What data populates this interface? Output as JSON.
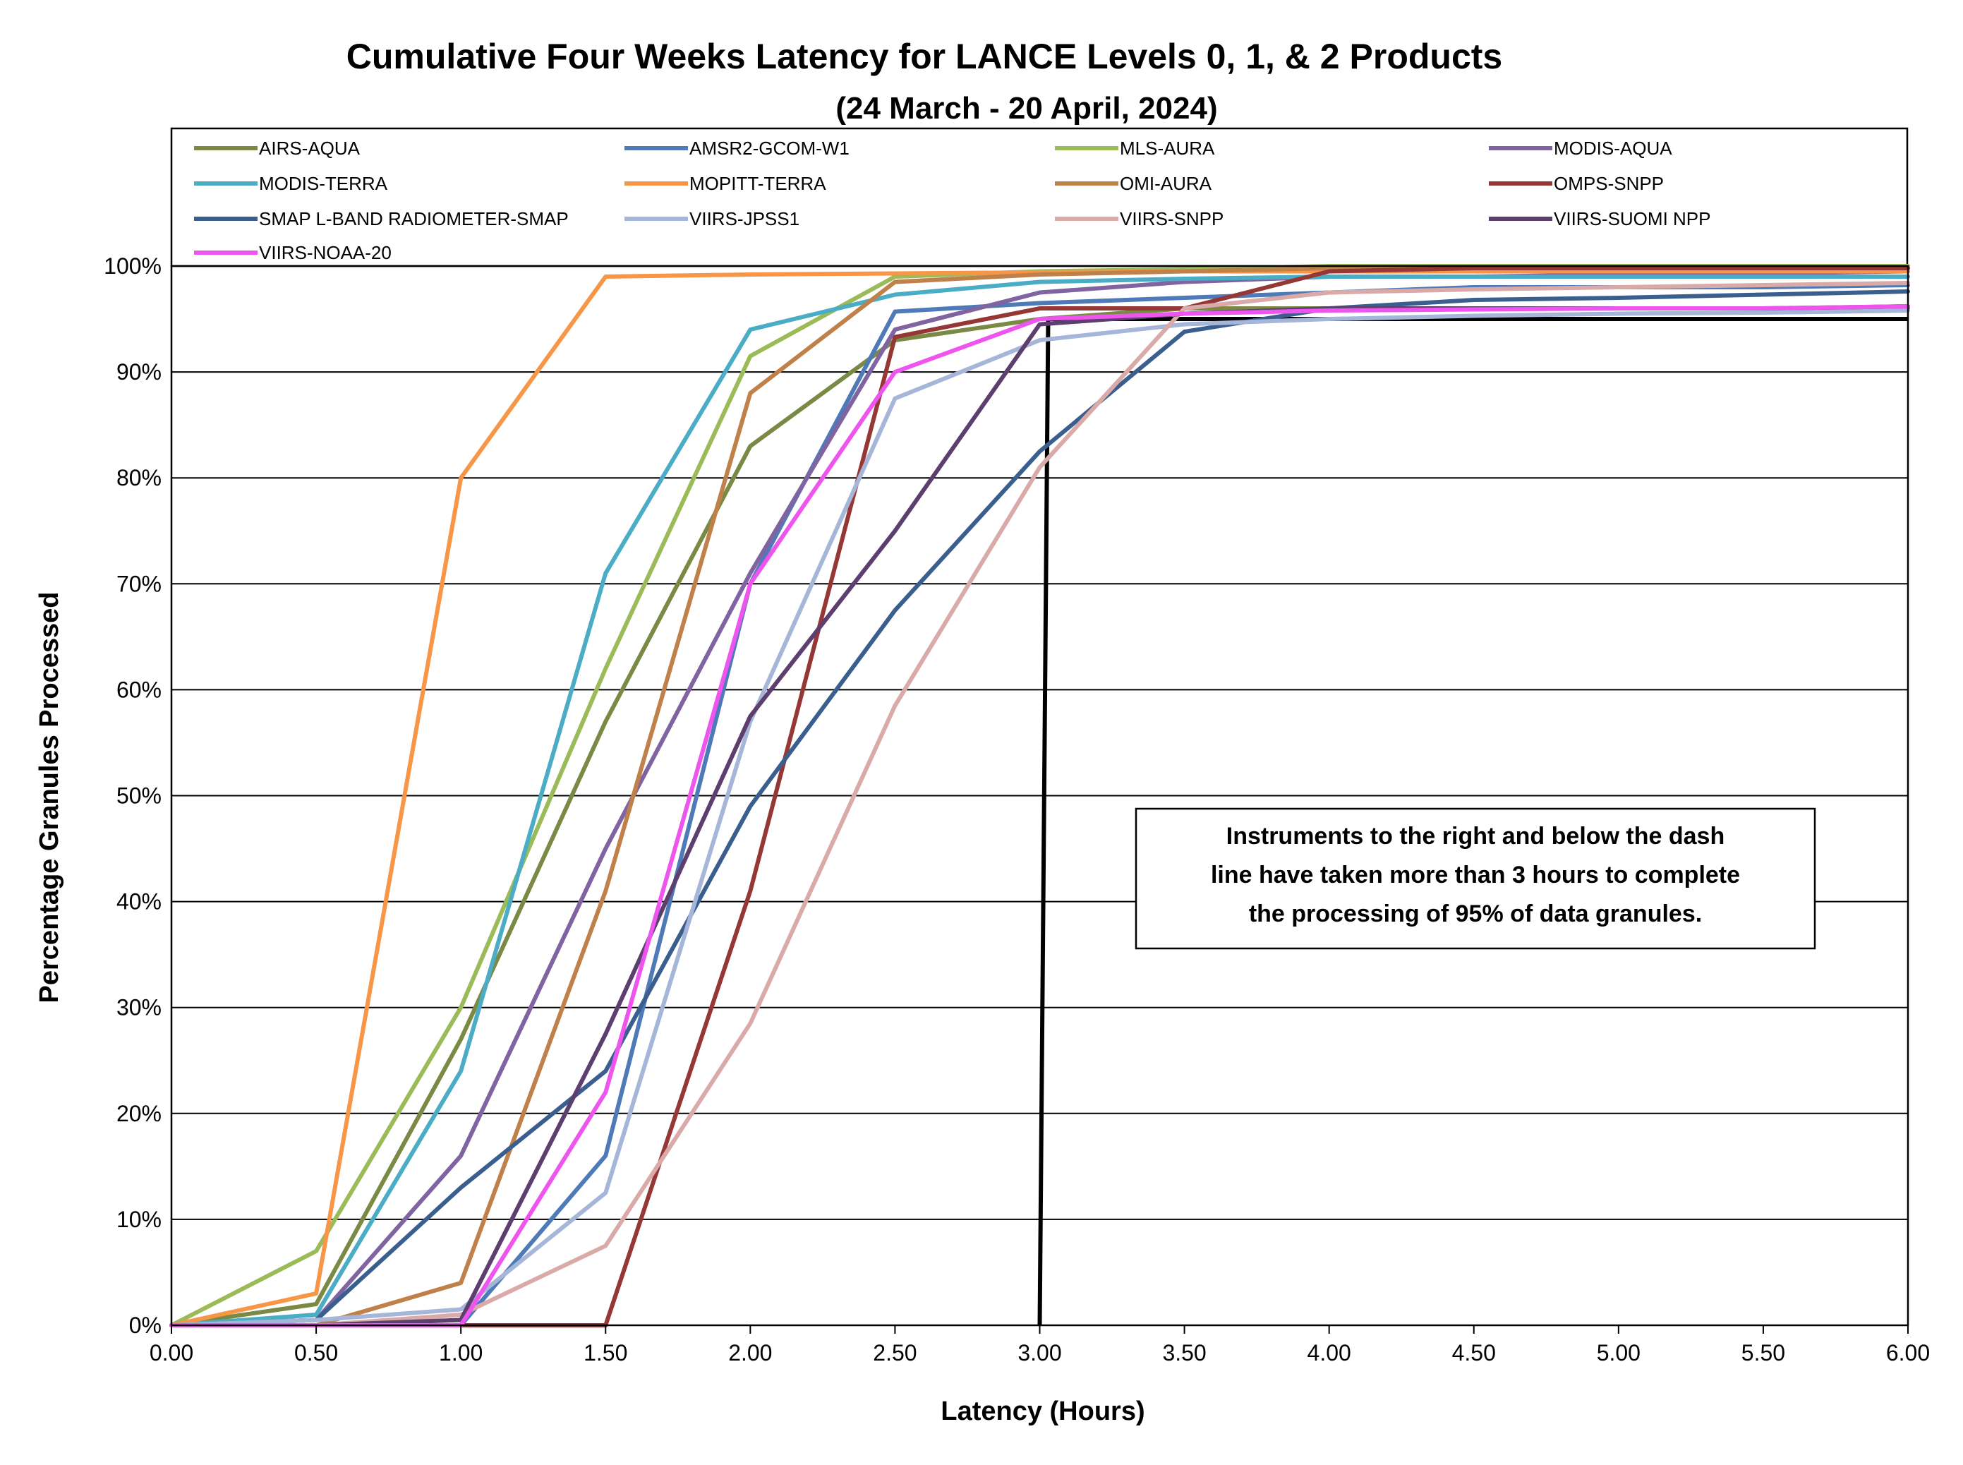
{
  "chart_data": {
    "type": "line",
    "title": "Cumulative Four Weeks Latency  for LANCE Levels 0, 1, & 2 Products",
    "subtitle": "(24  March   -  20  April,  2024)",
    "xlabel": "Latency (Hours)",
    "ylabel": "Percentage Granules Processed",
    "x": [
      0,
      0.5,
      1.0,
      1.5,
      2.0,
      2.5,
      3.0,
      3.5,
      4.0,
      4.5,
      5.0,
      5.5,
      6.0
    ],
    "xticks": [
      "0.00",
      "0.50",
      "1.00",
      "1.50",
      "2.00",
      "2.50",
      "3.00",
      "3.50",
      "4.00",
      "4.50",
      "5.00",
      "5.50",
      "6.00"
    ],
    "yticks": [
      "0%",
      "10%",
      "20%",
      "30%",
      "40%",
      "50%",
      "60%",
      "70%",
      "80%",
      "90%",
      "100%"
    ],
    "xlim": [
      0,
      6
    ],
    "ylim": [
      0,
      100
    ],
    "grid": "horizontal",
    "legend_position": "top",
    "series": [
      {
        "name": "AIRS-AQUA",
        "color": "#7a8a45",
        "values": [
          0,
          2,
          27,
          57,
          83,
          93,
          95,
          96,
          96,
          96,
          96,
          96,
          96
        ]
      },
      {
        "name": "AMSR2-GCOM-W1",
        "color": "#4f7ab8",
        "values": [
          0,
          0,
          0,
          16,
          70,
          95.7,
          96.5,
          97,
          97.5,
          98,
          98,
          98,
          98.2
        ]
      },
      {
        "name": "MLS-AURA",
        "color": "#9bbb59",
        "values": [
          0,
          7,
          30,
          62,
          91.5,
          99,
          99.5,
          99.7,
          100,
          100,
          100,
          100,
          100
        ]
      },
      {
        "name": "MODIS-AQUA",
        "color": "#8064a2",
        "values": [
          0,
          0.5,
          16,
          45,
          71,
          94,
          97.5,
          98.5,
          99,
          99,
          99.2,
          99.3,
          99.5
        ]
      },
      {
        "name": "MODIS-TERRA",
        "color": "#4bacc6",
        "values": [
          0,
          1,
          24,
          71,
          94,
          97.3,
          98.5,
          98.8,
          99,
          99,
          99,
          99,
          99
        ]
      },
      {
        "name": "MOPITT-TERRA",
        "color": "#f79646",
        "values": [
          0,
          3,
          80,
          99,
          99.2,
          99.3,
          99.4,
          99.5,
          99.5,
          99.5,
          99.5,
          99.5,
          99.5
        ]
      },
      {
        "name": "OMI-AURA",
        "color": "#c0804a",
        "values": [
          0,
          0,
          4,
          41,
          88,
          98.5,
          99.2,
          99.5,
          99.8,
          99.8,
          99.8,
          99.8,
          99.8
        ]
      },
      {
        "name": "OMPS-SNPP",
        "color": "#953735",
        "values": [
          0,
          0,
          0,
          0,
          41,
          93.3,
          96,
          96,
          99.5,
          99.8,
          99.8,
          99.8,
          99.8
        ]
      },
      {
        "name": "SMAP L-BAND RADIOMETER-SMAP",
        "color": "#3a5f8f",
        "values": [
          0,
          0.5,
          13,
          24,
          49,
          67.5,
          82.5,
          93.8,
          96,
          96.8,
          97,
          97.3,
          97.6
        ]
      },
      {
        "name": "VIIRS-JPSS1",
        "color": "#a6b6d8",
        "values": [
          0,
          0.5,
          1.5,
          12.5,
          57,
          87.5,
          93,
          94.5,
          95,
          95.3,
          95.5,
          95.6,
          95.8
        ]
      },
      {
        "name": "VIIRS-SNPP",
        "color": "#d9aaa8",
        "values": [
          0,
          0,
          1,
          7.5,
          28.5,
          58.5,
          81,
          96,
          97.5,
          97.8,
          98,
          98.2,
          98.4
        ]
      },
      {
        "name": "VIIRS-SUOMI NPP",
        "color": "#5c3f6e",
        "values": [
          0,
          0,
          0.5,
          27.5,
          57.5,
          75,
          94.5,
          95.5,
          96,
          96,
          96,
          96,
          96.2
        ]
      },
      {
        "name": "VIIRS-NOAA-20",
        "color": "#ee55ee",
        "values": [
          0,
          0,
          0,
          22,
          70,
          90,
          95,
          95.5,
          95.8,
          95.9,
          96,
          96,
          96.2
        ]
      }
    ],
    "threshold_line": {
      "x": 3.0,
      "y": 95,
      "color": "#000000"
    },
    "annotation": {
      "lines": [
        "Instruments to the right and below the dash",
        "line have taken more than 3 hours to complete",
        "the processing of 95% of data granules."
      ]
    }
  }
}
